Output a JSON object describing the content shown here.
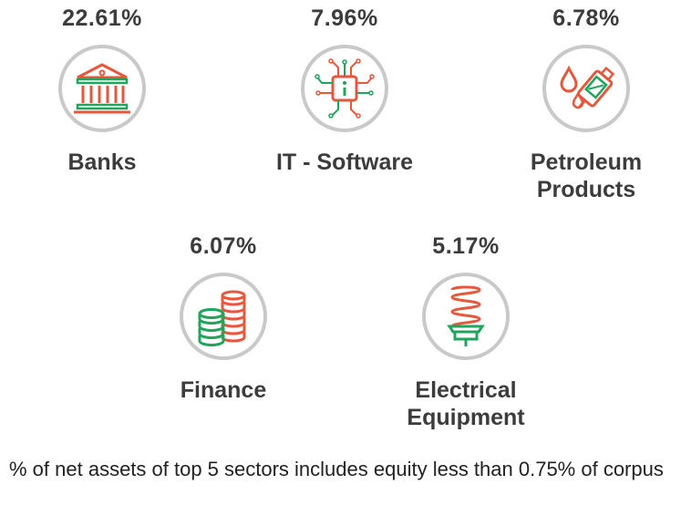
{
  "sectors": [
    {
      "percent": "22.61%",
      "name": "Banks",
      "icon": "bank-icon"
    },
    {
      "percent": "7.96%",
      "name": "IT - Software",
      "icon": "chip-icon"
    },
    {
      "percent": "6.78%",
      "name": "Petroleum\nProducts",
      "icon": "fuel-nozzle-icon"
    },
    {
      "percent": "6.07%",
      "name": "Finance",
      "icon": "coin-stack-icon"
    },
    {
      "percent": "5.17%",
      "name": "Electrical\nEquipment",
      "icon": "cfl-bulb-icon"
    }
  ],
  "colors": {
    "red": "#e8573b",
    "green": "#1fa55c",
    "ring": "#c9c9c9",
    "text": "#3c3c3c"
  },
  "footnote": "% of net assets of top 5 sectors includes equity less than 0.75% of corpus"
}
